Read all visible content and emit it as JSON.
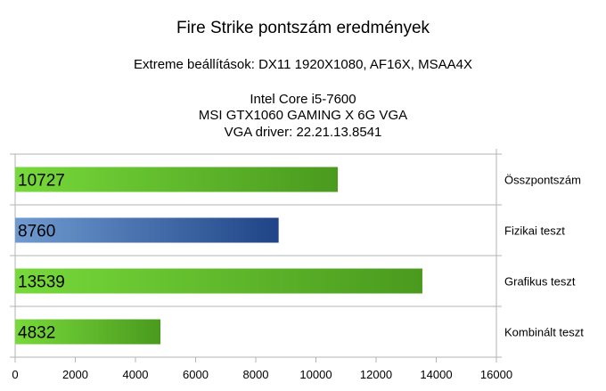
{
  "header": {
    "title": "Fire Strike pontszám eredmények",
    "subtitle": "Extreme beállítások: DX11 1920X1080, AF16X, MSAA4X",
    "info_lines": [
      "Intel Core i5-7600",
      "MSI GTX1060 GAMING X 6G VGA",
      "VGA driver: 22.21.13.8541"
    ]
  },
  "chart_data": {
    "type": "bar",
    "orientation": "horizontal",
    "title": "Fire Strike pontszám eredmények",
    "categories": [
      "Összpontszám",
      "Fizikai teszt",
      "Grafikus teszt",
      "Kombinált teszt"
    ],
    "values": [
      10727,
      8760,
      13539,
      4832
    ],
    "data_labels": [
      "10727",
      "8760",
      "13539",
      "4832"
    ],
    "bar_colors": [
      "#5cbf22",
      "#3d6aa8",
      "#5cbf22",
      "#5cbf22"
    ],
    "xlim": [
      0,
      16000
    ],
    "xticks": [
      0,
      2000,
      4000,
      6000,
      8000,
      10000,
      12000,
      14000,
      16000
    ],
    "category_label_position": "right",
    "grid": "horizontal separators"
  }
}
